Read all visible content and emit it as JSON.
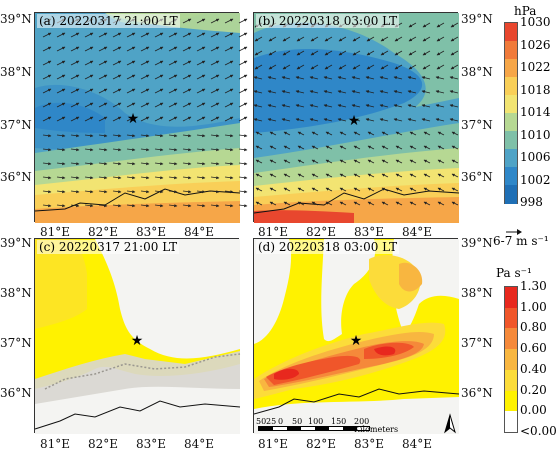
{
  "panels": [
    {
      "id": "a",
      "label": "(a) 20220317 21:00 LT"
    },
    {
      "id": "b",
      "label": "(b) 20220318 03:00 LT"
    },
    {
      "id": "c",
      "label": "(c) 20220317 21:00 LT"
    },
    {
      "id": "d",
      "label": "(d) 20220318 03:00 LT"
    }
  ],
  "lon_ticks": [
    "81°E",
    "82°E",
    "83°E",
    "84°E"
  ],
  "lat_ticks": [
    "39°N",
    "38°N",
    "37°N",
    "36°N"
  ],
  "pressure_colorbar": {
    "unit": "hPa",
    "labels": [
      "1030",
      "1026",
      "1022",
      "1018",
      "1014",
      "1010",
      "1006",
      "1002",
      "998"
    ],
    "colors": [
      "#e8472e",
      "#f07a3a",
      "#f6a648",
      "#f9cf58",
      "#f2e472",
      "#b6d893",
      "#7fc0a8",
      "#4fa3c6",
      "#2f87c8",
      "#1f6fb5"
    ]
  },
  "wind_reference": {
    "label": "6-7 m s⁻¹"
  },
  "velocity_colorbar": {
    "unit": "Pa s⁻¹",
    "labels": [
      "1.30",
      "1.00",
      "0.80",
      "0.60",
      "0.40",
      "0.20",
      "0.00",
      "<0.00"
    ],
    "colors": [
      "#e8281e",
      "#f0562a",
      "#f5893a",
      "#f8b640",
      "#fcdc3a",
      "#fff200",
      "#ffffff"
    ]
  },
  "scale_bar": {
    "unit": "Kilometers",
    "ticks": [
      "50",
      "25",
      "0",
      "50",
      "100",
      "150",
      "200"
    ]
  },
  "north_arrow": "N"
}
